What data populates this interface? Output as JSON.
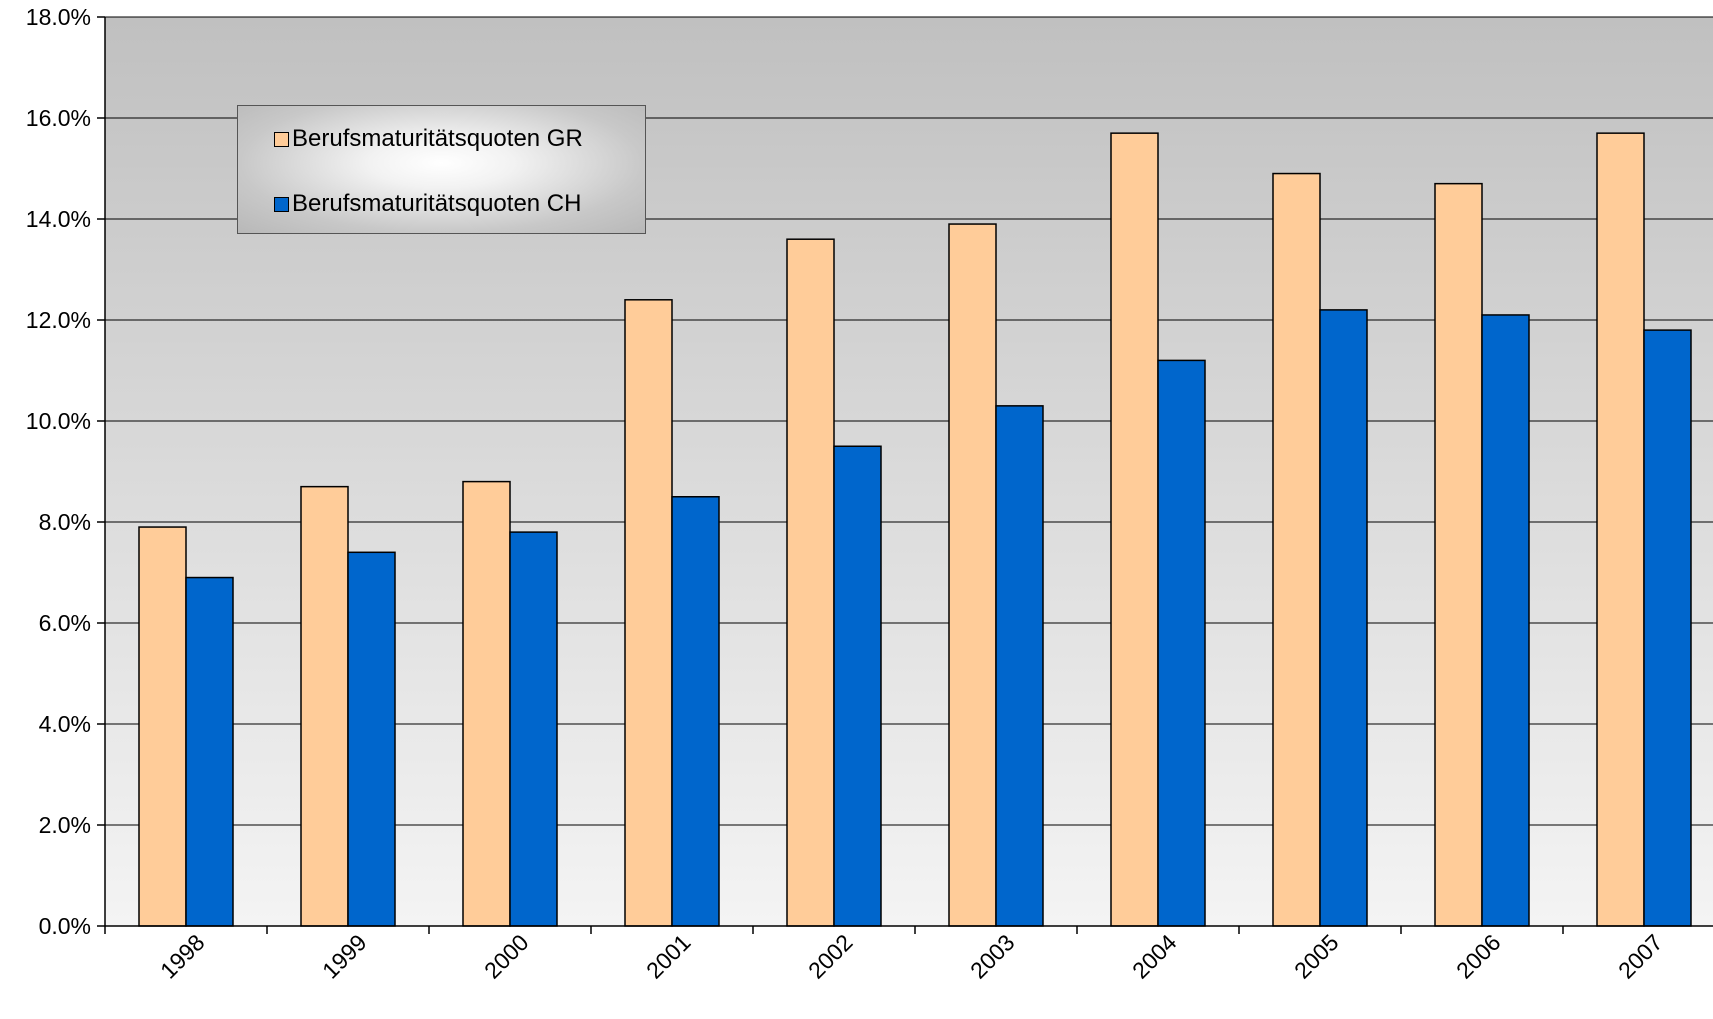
{
  "chart_data": {
    "type": "bar",
    "categories": [
      "1998",
      "1999",
      "2000",
      "2001",
      "2002",
      "2003",
      "2004",
      "2005",
      "2006",
      "2007"
    ],
    "series": [
      {
        "name": "Berufsmaturitätsquoten GR",
        "color": "#ffcc99",
        "values": [
          7.9,
          8.7,
          8.8,
          12.4,
          13.6,
          13.9,
          15.7,
          14.9,
          14.7,
          15.7
        ]
      },
      {
        "name": "Berufsmaturitätsquoten CH",
        "color": "#0066cc",
        "values": [
          6.9,
          7.4,
          7.8,
          8.5,
          9.5,
          10.3,
          11.2,
          12.2,
          12.1,
          11.8
        ]
      }
    ],
    "y_ticks": [
      "0.0%",
      "2.0%",
      "4.0%",
      "6.0%",
      "8.0%",
      "10.0%",
      "12.0%",
      "14.0%",
      "16.0%",
      "18.0%"
    ],
    "ylim": [
      0,
      18
    ],
    "y_unit": "%",
    "grid": true,
    "legend_position": "top-left",
    "plot_background": "gradient gray (dark top, light bottom)"
  }
}
